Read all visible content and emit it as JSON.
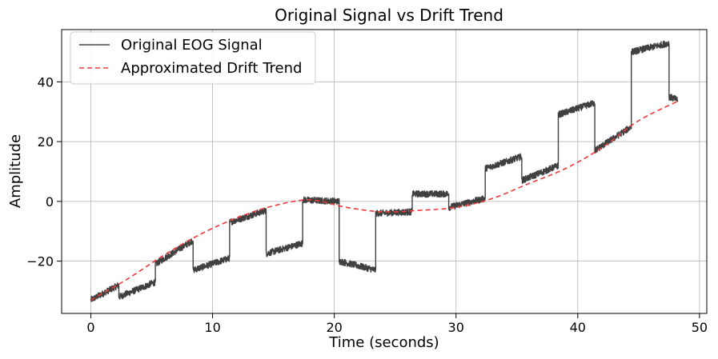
{
  "chart_data": {
    "type": "line",
    "title": "Original Signal vs Drift Trend",
    "xlabel": "Time (seconds)",
    "ylabel": "Amplitude",
    "xlim": [
      -2.4,
      50.6
    ],
    "ylim": [
      -37.5,
      57.5
    ],
    "xticks": [
      0,
      10,
      20,
      30,
      40,
      50
    ],
    "yticks": [
      -20,
      0,
      20,
      40
    ],
    "ytick_labels": [
      "−20",
      "0",
      "20",
      "40"
    ],
    "grid": true,
    "legend_position": "top-left",
    "series": [
      {
        "name": "Original EOG Signal",
        "color": "#404040",
        "style": "solid",
        "segments": [
          {
            "t0": 0.0,
            "t1": 2.3,
            "v0": -33,
            "v1": -28
          },
          {
            "t0": 2.3,
            "t1": 5.3,
            "v0": -32,
            "v1": -27
          },
          {
            "t0": 5.3,
            "t1": 8.4,
            "v0": -21,
            "v1": -13
          },
          {
            "t0": 8.4,
            "t1": 11.4,
            "v0": -23,
            "v1": -19
          },
          {
            "t0": 11.4,
            "t1": 14.4,
            "v0": -7,
            "v1": -3
          },
          {
            "t0": 14.4,
            "t1": 17.4,
            "v0": -17.5,
            "v1": -14
          },
          {
            "t0": 17.4,
            "t1": 20.4,
            "v0": 0.5,
            "v1": 0
          },
          {
            "t0": 20.4,
            "t1": 23.4,
            "v0": -20,
            "v1": -23
          },
          {
            "t0": 23.4,
            "t1": 26.4,
            "v0": -4,
            "v1": -3.5
          },
          {
            "t0": 26.4,
            "t1": 29.4,
            "v0": 2.5,
            "v1": 2.5
          },
          {
            "t0": 29.4,
            "t1": 32.4,
            "v0": -2,
            "v1": 1
          },
          {
            "t0": 32.4,
            "t1": 35.4,
            "v0": 11,
            "v1": 15
          },
          {
            "t0": 35.4,
            "t1": 38.4,
            "v0": 7,
            "v1": 12
          },
          {
            "t0": 38.4,
            "t1": 41.4,
            "v0": 29,
            "v1": 33
          },
          {
            "t0": 41.4,
            "t1": 44.4,
            "v0": 17,
            "v1": 25
          },
          {
            "t0": 44.4,
            "t1": 47.5,
            "v0": 50,
            "v1": 53
          },
          {
            "t0": 47.5,
            "t1": 48.2,
            "v0": 35,
            "v1": 34
          }
        ]
      },
      {
        "name": "Approximated Drift Trend",
        "color": "#ee3b3b",
        "style": "dashed",
        "x": [
          0,
          3,
          6,
          9,
          12,
          15,
          18,
          21,
          24,
          27,
          30,
          33,
          36,
          39,
          42,
          45,
          48.2
        ],
        "y": [
          -33,
          -26,
          -18,
          -11,
          -5.5,
          -1.5,
          0.5,
          -2,
          -3.5,
          -3,
          -2,
          1,
          6,
          11,
          18,
          27,
          33.5
        ]
      }
    ]
  }
}
